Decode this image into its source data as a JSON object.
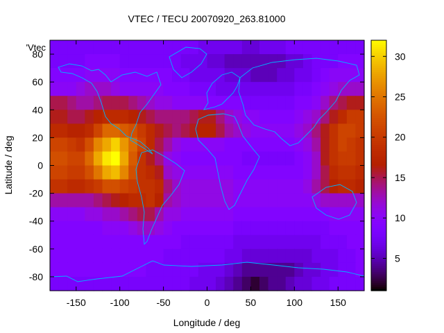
{
  "chart_data": {
    "type": "heatmap",
    "title": "VTEC / TECU 20070920_263.81000",
    "xlabel": "Longitude / deg",
    "ylabel": "Latitude / deg",
    "key_label": "'Vtec",
    "xlim": [
      -180,
      180
    ],
    "ylim": [
      -90,
      90
    ],
    "xticks": [
      -150,
      -100,
      -50,
      0,
      50,
      100,
      150
    ],
    "yticks": [
      -80,
      -60,
      -40,
      -20,
      0,
      20,
      40,
      60,
      80
    ],
    "colorbar": {
      "min": 1,
      "max": 32,
      "ticks": [
        5,
        10,
        15,
        20,
        25,
        30
      ]
    },
    "grid": false,
    "longitudes": [
      -175,
      -165,
      -155,
      -145,
      -135,
      -125,
      -115,
      -105,
      -95,
      -85,
      -75,
      -65,
      -55,
      -45,
      -35,
      -25,
      -15,
      -5,
      5,
      15,
      25,
      35,
      45,
      55,
      65,
      75,
      85,
      95,
      105,
      115,
      125,
      135,
      145,
      155,
      165,
      175
    ],
    "latitudes": [
      85,
      75,
      65,
      55,
      45,
      35,
      25,
      15,
      5,
      -5,
      -15,
      -25,
      -35,
      -45,
      -55,
      -65,
      -75,
      -85
    ],
    "values": [
      [
        8,
        8,
        8,
        8,
        8,
        8,
        8,
        8,
        8,
        8,
        8,
        8,
        8,
        8,
        8,
        8,
        8,
        7,
        7,
        7,
        7,
        7,
        6,
        6,
        7,
        7,
        7,
        8,
        8,
        8,
        8,
        8,
        8,
        8,
        8,
        8
      ],
      [
        8,
        8,
        8,
        8,
        9,
        9,
        9,
        9,
        8,
        8,
        8,
        8,
        8,
        8,
        8,
        7,
        7,
        7,
        6,
        6,
        5,
        5,
        5,
        5,
        5,
        5,
        5,
        6,
        6,
        7,
        8,
        8,
        8,
        9,
        9,
        9
      ],
      [
        9,
        9,
        9,
        9,
        10,
        10,
        10,
        10,
        9,
        9,
        9,
        9,
        9,
        9,
        8,
        8,
        7,
        7,
        7,
        7,
        6,
        6,
        6,
        5,
        5,
        5,
        6,
        6,
        7,
        7,
        8,
        9,
        10,
        10,
        10,
        10
      ],
      [
        10,
        10,
        10,
        11,
        12,
        12,
        12,
        11,
        10,
        10,
        10,
        10,
        10,
        9,
        9,
        9,
        8,
        8,
        8,
        7,
        7,
        7,
        7,
        7,
        7,
        7,
        7,
        7,
        8,
        8,
        9,
        10,
        11,
        12,
        12,
        12
      ],
      [
        15,
        15,
        14,
        13,
        13,
        14,
        15,
        15,
        15,
        14,
        13,
        12,
        11,
        11,
        10,
        10,
        10,
        10,
        9,
        9,
        9,
        9,
        8,
        8,
        8,
        8,
        8,
        8,
        9,
        9,
        10,
        12,
        14,
        15,
        16,
        16
      ],
      [
        16,
        16,
        15,
        15,
        16,
        17,
        18,
        18,
        18,
        17,
        16,
        15,
        14,
        14,
        14,
        14,
        15,
        16,
        16,
        14,
        12,
        11,
        10,
        10,
        9,
        9,
        9,
        9,
        10,
        11,
        12,
        14,
        16,
        18,
        20,
        20
      ],
      [
        18,
        18,
        17,
        17,
        18,
        21,
        24,
        24,
        23,
        22,
        20,
        18,
        16,
        15,
        14,
        15,
        16,
        17,
        17,
        15,
        13,
        12,
        11,
        10,
        10,
        10,
        10,
        10,
        11,
        12,
        14,
        16,
        19,
        21,
        21,
        20
      ],
      [
        21,
        21,
        20,
        19,
        22,
        26,
        28,
        30,
        27,
        24,
        21,
        18,
        15,
        13,
        11,
        10,
        10,
        10,
        10,
        10,
        9,
        9,
        9,
        9,
        9,
        9,
        9,
        9,
        10,
        11,
        13,
        16,
        19,
        21,
        20,
        19
      ],
      [
        22,
        22,
        21,
        21,
        24,
        28,
        31,
        32,
        28,
        23,
        19,
        16,
        14,
        11,
        10,
        9,
        9,
        9,
        9,
        9,
        9,
        9,
        8,
        8,
        8,
        8,
        8,
        8,
        9,
        10,
        12,
        16,
        19,
        20,
        20,
        19
      ],
      [
        21,
        21,
        20,
        20,
        22,
        25,
        28,
        29,
        26,
        22,
        19,
        18,
        16,
        12,
        11,
        10,
        10,
        10,
        10,
        10,
        10,
        9,
        9,
        9,
        9,
        9,
        9,
        9,
        9,
        10,
        12,
        15,
        18,
        19,
        19,
        18
      ],
      [
        19,
        19,
        18,
        18,
        19,
        20,
        22,
        22,
        21,
        20,
        19,
        19,
        18,
        14,
        12,
        11,
        11,
        11,
        11,
        11,
        11,
        10,
        10,
        10,
        10,
        10,
        10,
        10,
        10,
        11,
        13,
        15,
        17,
        18,
        18,
        17
      ],
      [
        13,
        13,
        13,
        13,
        13,
        14,
        15,
        16,
        17,
        18,
        18,
        19,
        17,
        13,
        12,
        11,
        11,
        11,
        11,
        11,
        11,
        10,
        10,
        10,
        10,
        10,
        10,
        10,
        10,
        10,
        11,
        12,
        12,
        12,
        12,
        12
      ],
      [
        10,
        10,
        10,
        10,
        11,
        11,
        12,
        12,
        13,
        14,
        15,
        15,
        13,
        11,
        11,
        10,
        10,
        10,
        10,
        10,
        10,
        9,
        9,
        9,
        9,
        9,
        9,
        9,
        9,
        9,
        9,
        9,
        10,
        10,
        10,
        10
      ],
      [
        9,
        9,
        9,
        9,
        9,
        9,
        10,
        10,
        10,
        11,
        12,
        12,
        11,
        10,
        9,
        9,
        9,
        9,
        9,
        9,
        9,
        8,
        8,
        8,
        8,
        8,
        8,
        8,
        8,
        8,
        8,
        8,
        9,
        9,
        9,
        9
      ],
      [
        9,
        9,
        9,
        9,
        9,
        9,
        9,
        9,
        9,
        9,
        9,
        9,
        9,
        9,
        9,
        8,
        8,
        8,
        8,
        8,
        8,
        7,
        7,
        7,
        7,
        7,
        7,
        7,
        7,
        7,
        7,
        8,
        8,
        8,
        9,
        9
      ],
      [
        9,
        9,
        9,
        9,
        9,
        9,
        9,
        9,
        9,
        9,
        9,
        9,
        9,
        8,
        8,
        8,
        8,
        8,
        8,
        8,
        7,
        7,
        6,
        6,
        6,
        6,
        6,
        6,
        6,
        6,
        7,
        7,
        7,
        8,
        8,
        9
      ],
      [
        9,
        9,
        9,
        9,
        9,
        9,
        9,
        9,
        9,
        9,
        9,
        8,
        8,
        8,
        8,
        8,
        8,
        7,
        7,
        7,
        6,
        5,
        4,
        4,
        4,
        4,
        4,
        4,
        5,
        6,
        6,
        7,
        7,
        8,
        8,
        9
      ],
      [
        8,
        8,
        8,
        8,
        8,
        8,
        8,
        8,
        8,
        8,
        8,
        8,
        8,
        8,
        8,
        8,
        7,
        7,
        7,
        6,
        5,
        4,
        3,
        2,
        3,
        4,
        4,
        5,
        6,
        6,
        7,
        7,
        8,
        8,
        8,
        8
      ]
    ]
  }
}
